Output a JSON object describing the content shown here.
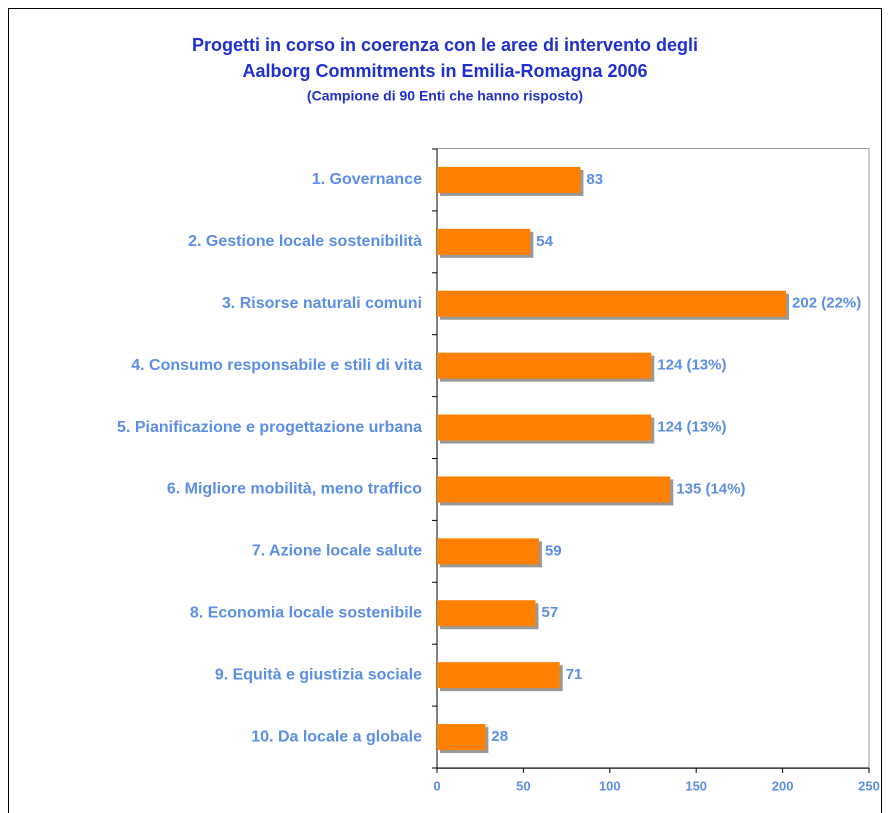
{
  "chart_data": {
    "type": "bar",
    "orientation": "horizontal",
    "title": [
      "Progetti in corso in coerenza con le aree di intervento degli",
      "Aalborg Commitments in Emilia-Romagna 2006"
    ],
    "subtitle": "(Campione di 90 Enti che hanno risposto)",
    "categories": [
      "1. Governance",
      "2. Gestione locale sostenibilità",
      "3. Risorse naturali comuni",
      "4. Consumo responsabile e stili di vita",
      "5. Pianificazione e progettazione urbana",
      "6. Migliore mobilità, meno traffico",
      "7. Azione locale salute",
      "8. Economia locale sostenibile",
      "9. Equità e giustizia sociale",
      "10. Da locale a globale"
    ],
    "values": [
      83,
      54,
      202,
      124,
      124,
      135,
      59,
      57,
      71,
      28
    ],
    "value_labels": [
      "83",
      "54",
      "202 (22%)",
      "124 (13%)",
      "124 (13%)",
      "135 (14%)",
      "59",
      "57",
      "71",
      "28"
    ],
    "color": "#ff8000",
    "xlim": [
      0,
      250
    ],
    "xticks": [
      0,
      50,
      100,
      150,
      200,
      250
    ]
  }
}
